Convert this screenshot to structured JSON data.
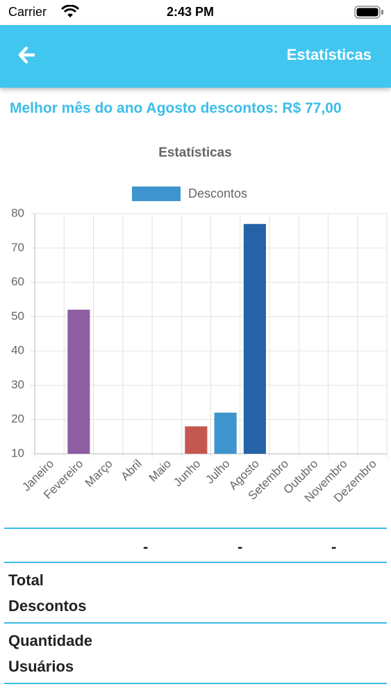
{
  "status_bar": {
    "carrier": "Carrier",
    "time": "2:43 PM"
  },
  "header": {
    "title": "Estatísticas"
  },
  "headline": "Melhor mês do ano Agosto descontos: R$ 77,00",
  "chart_data": {
    "type": "bar",
    "title": "Estatísticas",
    "categories": [
      "Janeiro",
      "Fevereiro",
      "Março",
      "Abril",
      "Maio",
      "Junho",
      "Julho",
      "Agosto",
      "Setembro",
      "Outubro",
      "Novembro",
      "Dezembro"
    ],
    "series": [
      {
        "name": "Descontos",
        "color": "#3e95cd",
        "values": [
          null,
          52,
          null,
          null,
          null,
          18,
          22,
          77,
          null,
          null,
          null,
          null
        ],
        "colors": [
          null,
          "#8e5ea2",
          null,
          null,
          null,
          "#c45850",
          "#3e95cd",
          "#2563a6",
          null,
          null,
          null,
          null
        ]
      }
    ],
    "ylim": [
      10,
      80
    ],
    "yticks": [
      10,
      20,
      30,
      40,
      50,
      60,
      70,
      80
    ],
    "grid": true,
    "legend": "top"
  },
  "table": {
    "rows": [
      [
        "",
        "-",
        "-",
        "-"
      ],
      [
        "Total Descontos"
      ],
      [
        "Quantidade Usuários"
      ]
    ]
  }
}
